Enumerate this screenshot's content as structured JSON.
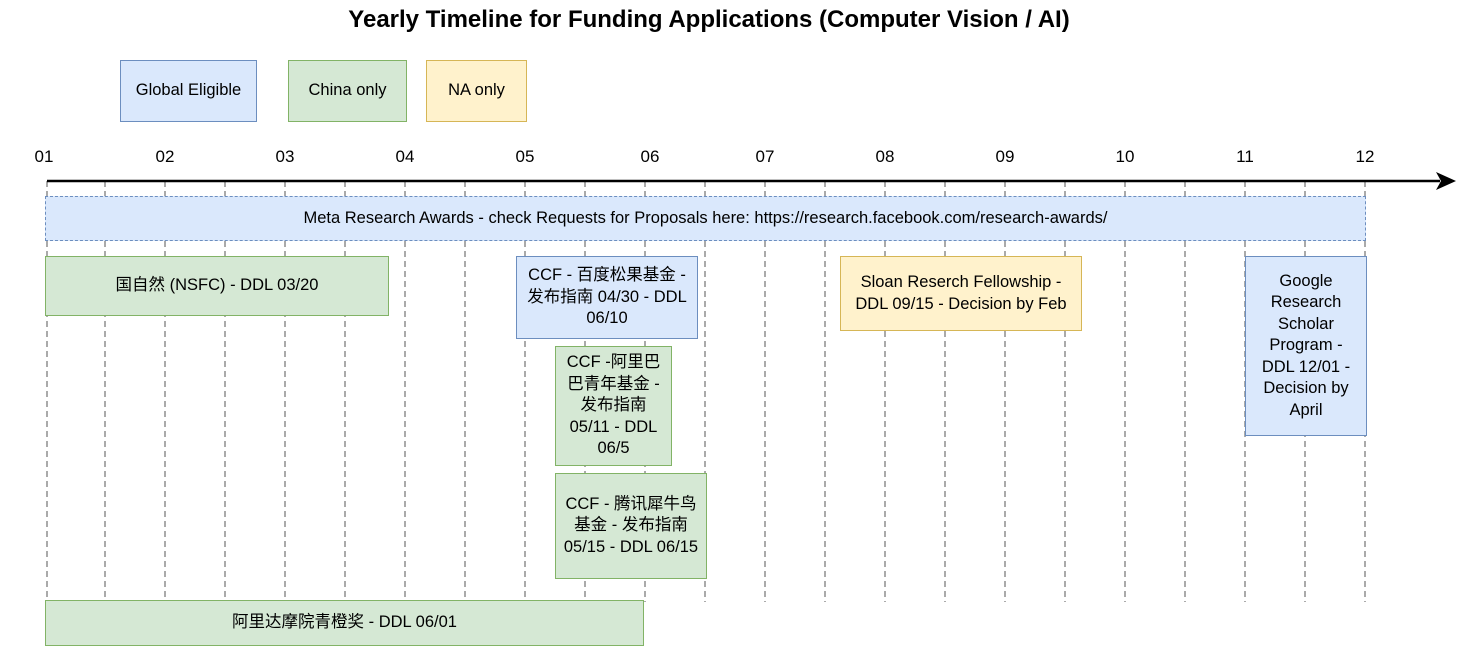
{
  "title": "Yearly Timeline for Funding Applications (Computer Vision / AI)",
  "legend": {
    "global": "Global Eligible",
    "china": "China only",
    "na": "NA only"
  },
  "colors": {
    "global_fill": "#dae8fc",
    "global_stroke": "#6c8ebf",
    "china_fill": "#d5e8d4",
    "china_stroke": "#82b366",
    "na_fill": "#fff2cc",
    "na_stroke": "#d6b656"
  },
  "months": [
    "01",
    "02",
    "03",
    "04",
    "05",
    "06",
    "07",
    "08",
    "09",
    "10",
    "11",
    "12"
  ],
  "events": {
    "meta": "Meta Research Awards - check Requests for Proposals here: https://research.facebook.com/research-awards/",
    "nsfc": "国自然 (NSFC) - DDL 03/20",
    "baidu": "CCF - 百度松果基金 - 发布指南 04/30 - DDL 06/10",
    "alibaba_youth": "CCF -阿里巴巴青年基金 - 发布指南 05/11 - DDL 06/5",
    "tencent": "CCF - 腾讯犀牛鸟基金 - 发布指南 05/15 - DDL 06/15",
    "sloan": "Sloan Reserch Fellowship - DDL 09/15 - Decision by Feb",
    "google": "Google Research Scholar Program - DDL 12/01 - Decision by April",
    "damo": "阿里达摩院青橙奖 - DDL 06/01"
  }
}
